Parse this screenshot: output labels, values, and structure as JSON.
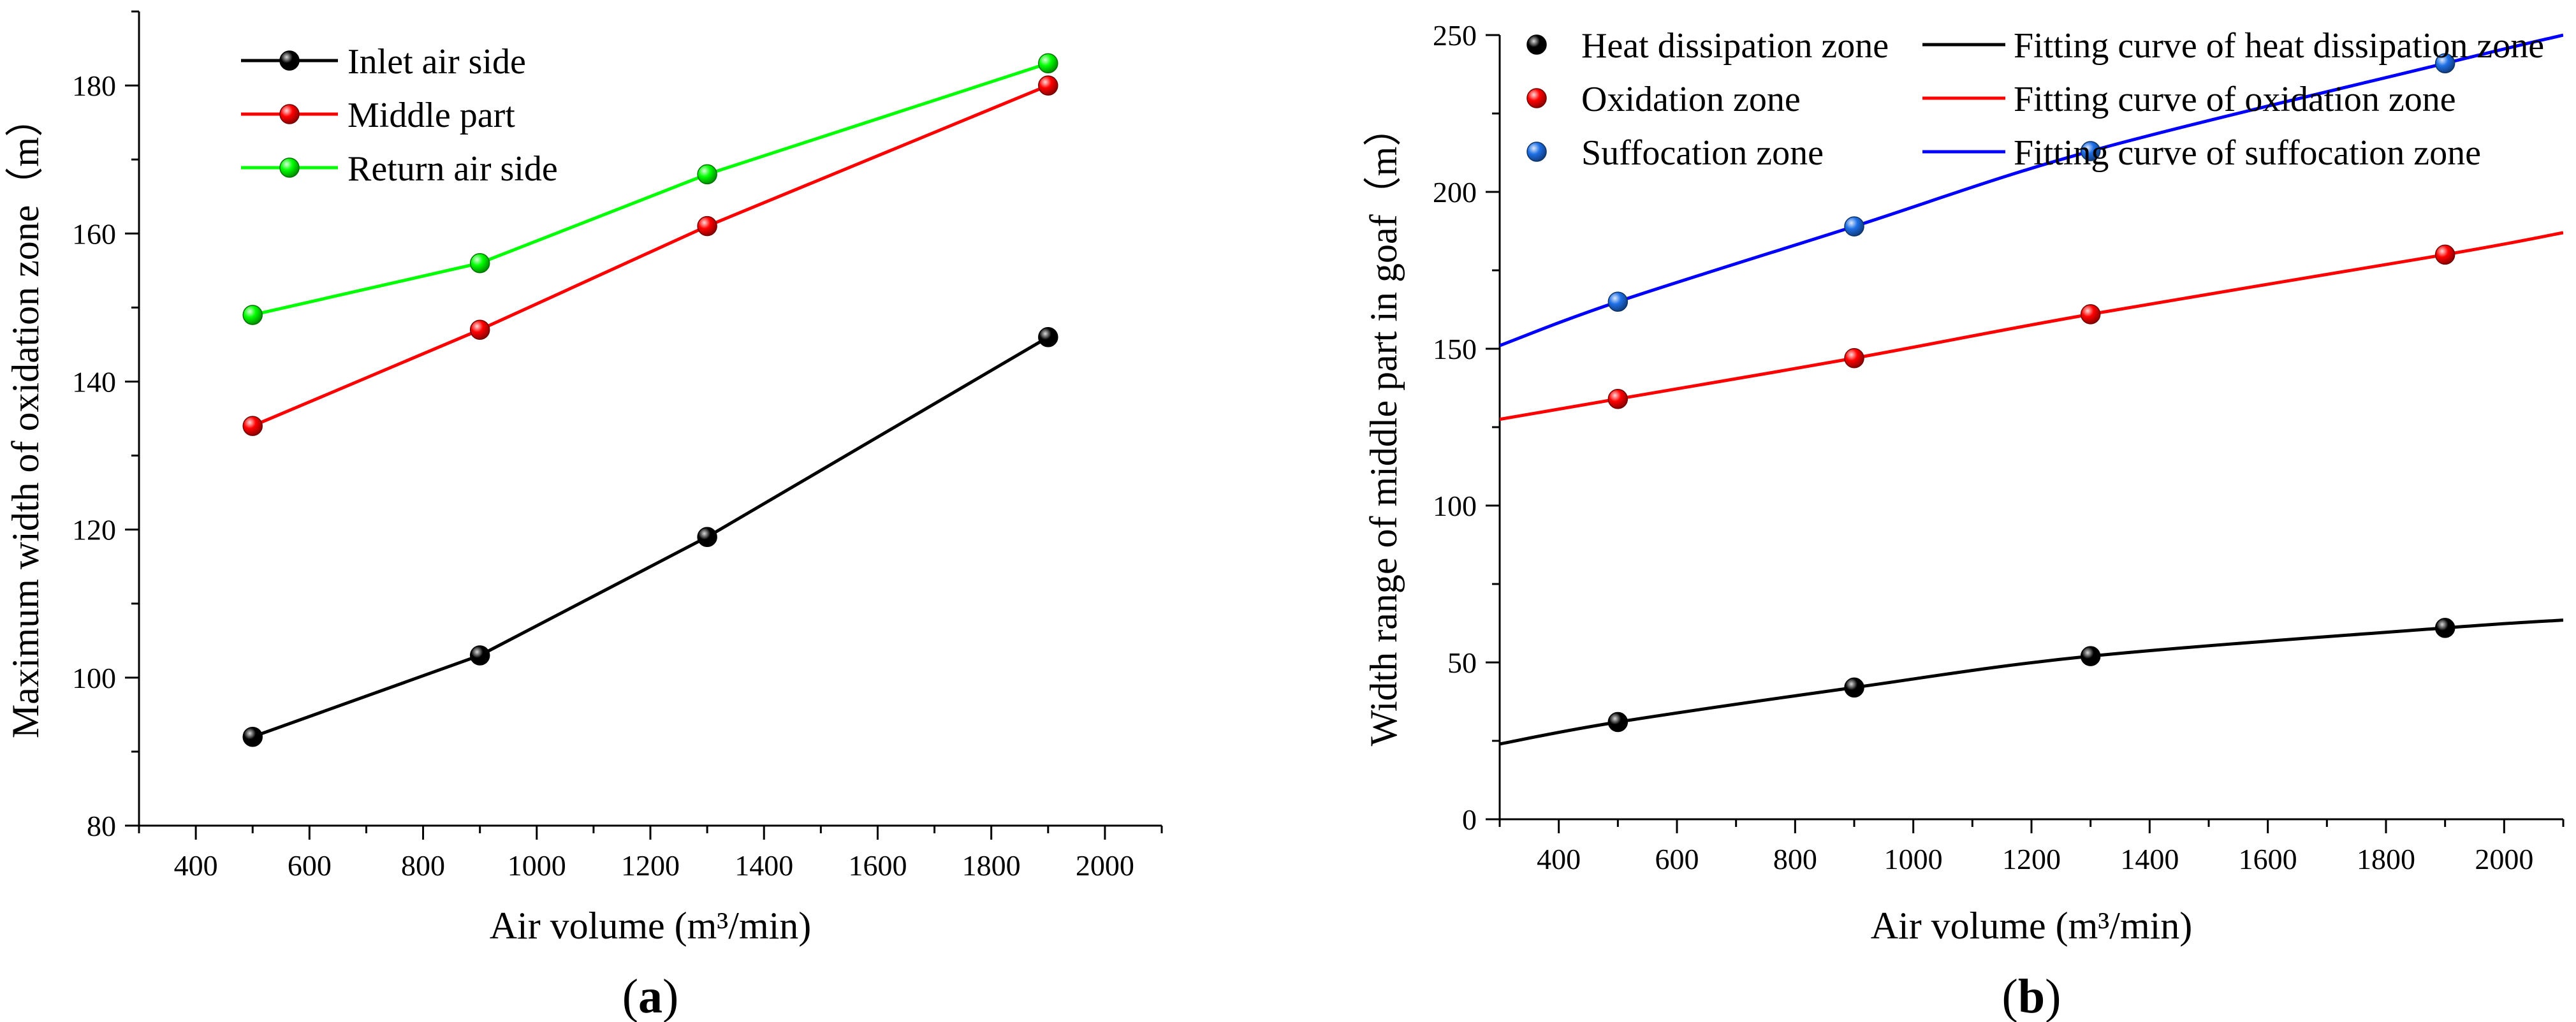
{
  "chart_data": [
    {
      "type": "line",
      "panel_label": "a",
      "xlabel": "Air volume (m³/min)",
      "ylabel": "Maximum width of oxidation zone（m）",
      "xlim": [
        300,
        2100
      ],
      "ylim": [
        80,
        190
      ],
      "x_ticks": [
        400,
        600,
        800,
        1000,
        1200,
        1400,
        1600,
        1800,
        2000
      ],
      "y_ticks": [
        80,
        100,
        120,
        140,
        160,
        180
      ],
      "legend_position": "top-left",
      "x": [
        500,
        900,
        1300,
        1900
      ],
      "series": [
        {
          "name": "Inlet air side",
          "color": "#000000",
          "values": [
            92,
            103,
            119,
            146
          ]
        },
        {
          "name": "Middle part",
          "color": "#ff0000",
          "values": [
            134,
            147,
            161,
            180
          ]
        },
        {
          "name": "Return air side",
          "color": "#00ff00",
          "values": [
            149,
            156,
            168,
            183
          ]
        }
      ]
    },
    {
      "type": "scatter",
      "panel_label": "b",
      "xlabel": "Air volume (m³/min)",
      "ylabel": "Width range of middle part in goaf（m）",
      "xlim": [
        300,
        2100
      ],
      "ylim": [
        0,
        250
      ],
      "x_ticks": [
        400,
        600,
        800,
        1000,
        1200,
        1400,
        1600,
        1800,
        2000
      ],
      "y_ticks": [
        0,
        50,
        100,
        150,
        200,
        250
      ],
      "legend_position": "top",
      "x": [
        500,
        900,
        1300,
        1900
      ],
      "series": [
        {
          "name": "Heat dissipation zone",
          "color": "#000000",
          "values": [
            31,
            42,
            52,
            61
          ]
        },
        {
          "name": "Oxidation  zone",
          "color": "#ff0000",
          "values": [
            134,
            147,
            161,
            180
          ]
        },
        {
          "name": "Suffocation zone",
          "color": "#1e6fe6",
          "values": [
            165,
            189,
            213,
            241
          ]
        }
      ],
      "fit_curves": [
        {
          "name": "Fitting curve of heat dissipation zone",
          "color": "#000000",
          "x": [
            300,
            500,
            900,
            1300,
            1900,
            2100
          ],
          "values": [
            24,
            31,
            42,
            52,
            61,
            63.5
          ]
        },
        {
          "name": "Fitting curve of oxidation  zone",
          "color": "#ff0000",
          "x": [
            300,
            500,
            900,
            1300,
            1900,
            2100
          ],
          "values": [
            127.5,
            134,
            147,
            161,
            180,
            187
          ]
        },
        {
          "name": "Fitting curve of suffocation zone",
          "color": "#0000ff",
          "x": [
            300,
            500,
            900,
            1300,
            1900,
            2100
          ],
          "values": [
            151,
            165,
            189,
            213,
            241,
            250
          ]
        }
      ]
    }
  ]
}
